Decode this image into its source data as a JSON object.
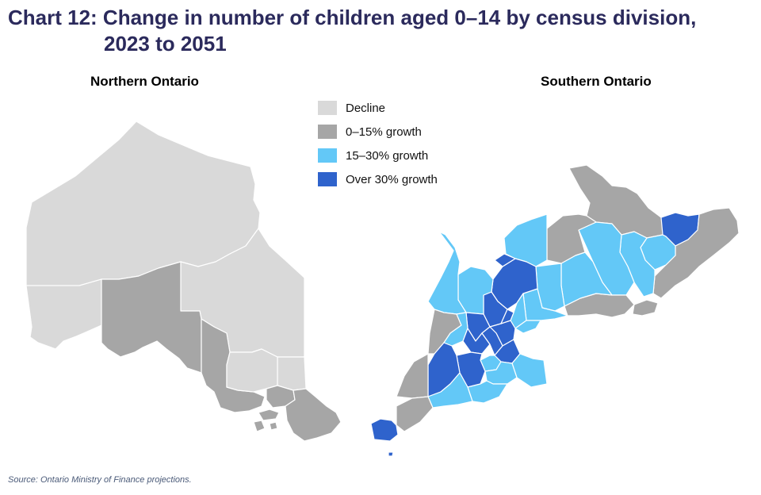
{
  "title": {
    "line1": "Chart 12: Change in number of children aged 0–14 by census division,",
    "line2": "2023 to 2051"
  },
  "maps": {
    "north_heading": "Northern Ontario",
    "south_heading": "Southern Ontario"
  },
  "legend": [
    {
      "label": "Decline",
      "color": "#d9d9d9",
      "category": "decline"
    },
    {
      "label": "0–15% growth",
      "color": "#a6a6a6",
      "category": "low"
    },
    {
      "label": "15–30% growth",
      "color": "#63c8f7",
      "category": "mid"
    },
    {
      "label": "Over 30% growth",
      "color": "#2f63cc",
      "category": "high"
    }
  ],
  "source": "Source: Ontario Ministry of Finance projections."
}
